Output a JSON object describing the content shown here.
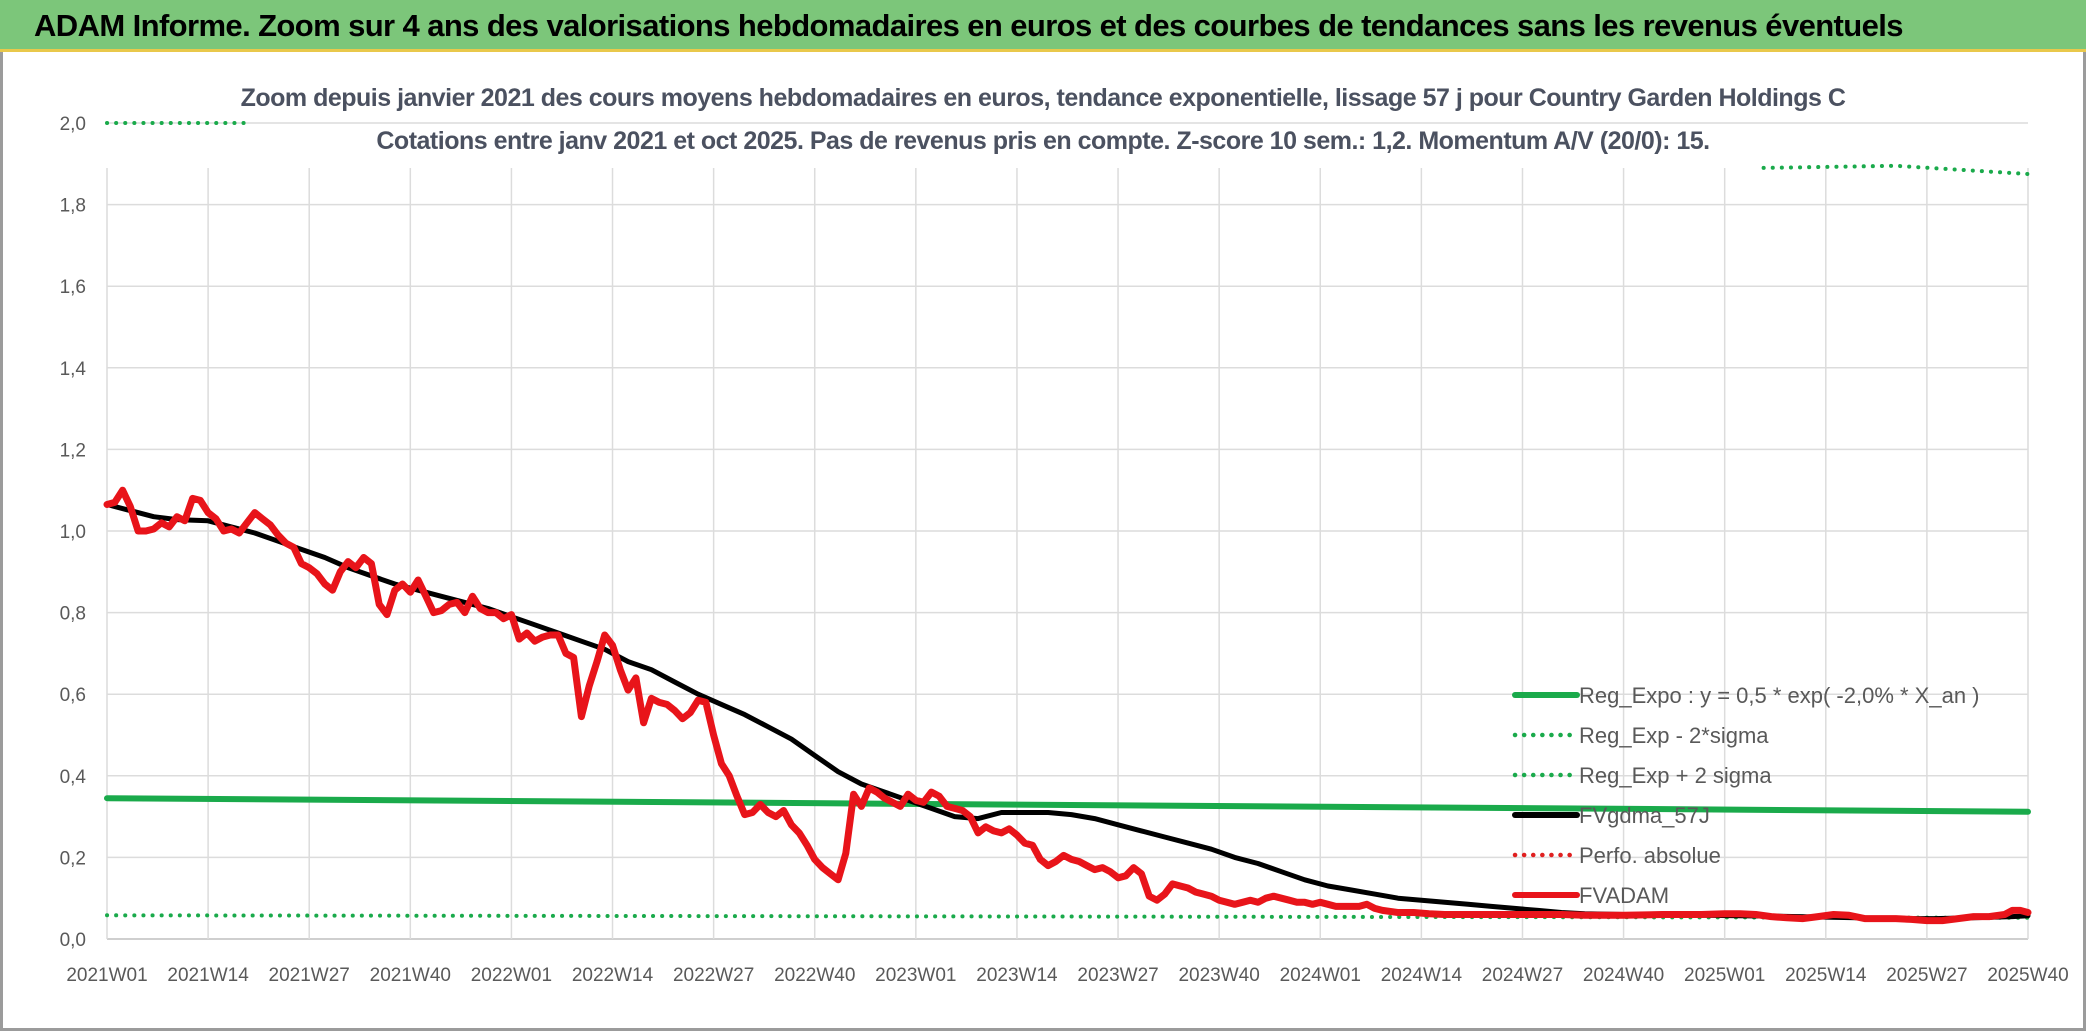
{
  "header": {
    "title": "ADAM Informe. Zoom sur 4 ans des valorisations hebdomadaires en euros et des courbes de tendances sans les revenus éventuels"
  },
  "chart_data": {
    "type": "line",
    "title": "Zoom depuis janvier 2021 des cours moyens hebdomadaires en euros, tendance exponentielle, lissage 57 j pour Country Garden Holdings C",
    "subtitle": "Cotations entre janv 2021 et oct 2025. Pas de revenus pris en compte. Z-score 10 sem.: 1,2. Momentum A/V (20/0): 15.",
    "xlabel": "",
    "ylabel": "",
    "ylim": [
      0,
      2
    ],
    "y_ticks": [
      "0,0",
      "0,2",
      "0,4",
      "0,6",
      "0,8",
      "1,0",
      "1,2",
      "1,4",
      "1,6",
      "1,8",
      "2,0"
    ],
    "x_ticks": [
      "2021W01",
      "2021W14",
      "2021W27",
      "2021W40",
      "2022W01",
      "2022W14",
      "2022W27",
      "2022W40",
      "2023W01",
      "2023W14",
      "2023W27",
      "2023W40",
      "2024W01",
      "2024W14",
      "2024W27",
      "2024W40",
      "2025W01",
      "2025W14",
      "2025W27",
      "2025W40"
    ],
    "grid": true,
    "legend_position": "bottom-right",
    "series": [
      {
        "name": "Reg_Expo : y = 0,5 * exp( -2,0% *  X_an )",
        "color": "#1aaa4b",
        "style": "solid",
        "points": [
          [
            0,
            0.345
          ],
          [
            247,
            0.312
          ]
        ]
      },
      {
        "name": "Reg_Exp - 2*sigma",
        "color": "#1aaa4b",
        "style": "dotted",
        "points": [
          [
            0,
            0.058
          ],
          [
            247,
            0.052
          ]
        ]
      },
      {
        "name": "Reg_Exp + 2 sigma",
        "color": "#1aaa4b",
        "style": "dotted",
        "points": [
          [
            0,
            2.0
          ],
          [
            18,
            2.0
          ],
          [
            null,
            null
          ],
          [
            213,
            1.89
          ],
          [
            230,
            1.895
          ],
          [
            247,
            1.875
          ]
        ]
      },
      {
        "name": "FVgdma_57J",
        "color": "#000000",
        "style": "solid",
        "points": [
          [
            0,
            1.065
          ],
          [
            3,
            1.05
          ],
          [
            6,
            1.035
          ],
          [
            9,
            1.028
          ],
          [
            13,
            1.025
          ],
          [
            16,
            1.01
          ],
          [
            19,
            0.995
          ],
          [
            22,
            0.975
          ],
          [
            25,
            0.955
          ],
          [
            28,
            0.935
          ],
          [
            31,
            0.91
          ],
          [
            34,
            0.89
          ],
          [
            37,
            0.87
          ],
          [
            40,
            0.855
          ],
          [
            43,
            0.84
          ],
          [
            46,
            0.825
          ],
          [
            49,
            0.81
          ],
          [
            52,
            0.79
          ],
          [
            55,
            0.77
          ],
          [
            58,
            0.75
          ],
          [
            61,
            0.73
          ],
          [
            64,
            0.71
          ],
          [
            67,
            0.68
          ],
          [
            70,
            0.66
          ],
          [
            73,
            0.63
          ],
          [
            76,
            0.6
          ],
          [
            79,
            0.575
          ],
          [
            82,
            0.55
          ],
          [
            85,
            0.52
          ],
          [
            88,
            0.49
          ],
          [
            91,
            0.45
          ],
          [
            94,
            0.41
          ],
          [
            97,
            0.38
          ],
          [
            100,
            0.36
          ],
          [
            103,
            0.34
          ],
          [
            106,
            0.32
          ],
          [
            109,
            0.3
          ],
          [
            112,
            0.295
          ],
          [
            115,
            0.31
          ],
          [
            118,
            0.31
          ],
          [
            121,
            0.31
          ],
          [
            124,
            0.305
          ],
          [
            127,
            0.295
          ],
          [
            130,
            0.28
          ],
          [
            133,
            0.265
          ],
          [
            136,
            0.25
          ],
          [
            139,
            0.235
          ],
          [
            142,
            0.22
          ],
          [
            145,
            0.2
          ],
          [
            148,
            0.185
          ],
          [
            151,
            0.165
          ],
          [
            154,
            0.145
          ],
          [
            157,
            0.13
          ],
          [
            160,
            0.12
          ],
          [
            163,
            0.11
          ],
          [
            166,
            0.1
          ],
          [
            169,
            0.095
          ],
          [
            172,
            0.09
          ],
          [
            175,
            0.085
          ],
          [
            178,
            0.08
          ],
          [
            181,
            0.075
          ],
          [
            184,
            0.07
          ],
          [
            187,
            0.065
          ],
          [
            190,
            0.062
          ],
          [
            195,
            0.06
          ],
          [
            200,
            0.058
          ],
          [
            205,
            0.058
          ],
          [
            210,
            0.057
          ],
          [
            215,
            0.056
          ],
          [
            220,
            0.054
          ],
          [
            225,
            0.052
          ],
          [
            230,
            0.05
          ],
          [
            235,
            0.05
          ],
          [
            240,
            0.052
          ],
          [
            245,
            0.055
          ],
          [
            247,
            0.057
          ]
        ]
      },
      {
        "name": "Perfo. absolue",
        "color": "#e02020",
        "style": "dotted",
        "points": []
      },
      {
        "name": "FVADAM",
        "color": "#e8141a",
        "style": "solid",
        "points": [
          [
            0,
            1.065
          ],
          [
            1,
            1.07
          ],
          [
            2,
            1.1
          ],
          [
            3,
            1.06
          ],
          [
            4,
            1.0
          ],
          [
            5,
            1.0
          ],
          [
            6,
            1.005
          ],
          [
            7,
            1.02
          ],
          [
            8,
            1.01
          ],
          [
            9,
            1.035
          ],
          [
            10,
            1.025
          ],
          [
            11,
            1.08
          ],
          [
            12,
            1.075
          ],
          [
            13,
            1.045
          ],
          [
            14,
            1.03
          ],
          [
            15,
            1.0
          ],
          [
            16,
            1.005
          ],
          [
            17,
            0.995
          ],
          [
            18,
            1.02
          ],
          [
            19,
            1.045
          ],
          [
            20,
            1.03
          ],
          [
            21,
            1.015
          ],
          [
            22,
            0.99
          ],
          [
            23,
            0.97
          ],
          [
            24,
            0.96
          ],
          [
            25,
            0.92
          ],
          [
            26,
            0.91
          ],
          [
            27,
            0.895
          ],
          [
            28,
            0.87
          ],
          [
            29,
            0.855
          ],
          [
            30,
            0.9
          ],
          [
            31,
            0.925
          ],
          [
            32,
            0.91
          ],
          [
            33,
            0.935
          ],
          [
            34,
            0.92
          ],
          [
            35,
            0.82
          ],
          [
            36,
            0.795
          ],
          [
            37,
            0.855
          ],
          [
            38,
            0.87
          ],
          [
            39,
            0.85
          ],
          [
            40,
            0.88
          ],
          [
            41,
            0.84
          ],
          [
            42,
            0.8
          ],
          [
            43,
            0.805
          ],
          [
            44,
            0.82
          ],
          [
            45,
            0.825
          ],
          [
            46,
            0.8
          ],
          [
            47,
            0.84
          ],
          [
            48,
            0.81
          ],
          [
            49,
            0.8
          ],
          [
            50,
            0.8
          ],
          [
            51,
            0.785
          ],
          [
            52,
            0.795
          ],
          [
            53,
            0.735
          ],
          [
            54,
            0.75
          ],
          [
            55,
            0.73
          ],
          [
            56,
            0.74
          ],
          [
            57,
            0.745
          ],
          [
            58,
            0.745
          ],
          [
            59,
            0.7
          ],
          [
            60,
            0.69
          ],
          [
            61,
            0.545
          ],
          [
            62,
            0.62
          ],
          [
            63,
            0.68
          ],
          [
            64,
            0.745
          ],
          [
            65,
            0.72
          ],
          [
            66,
            0.66
          ],
          [
            67,
            0.61
          ],
          [
            68,
            0.64
          ],
          [
            69,
            0.53
          ],
          [
            70,
            0.59
          ],
          [
            71,
            0.58
          ],
          [
            72,
            0.575
          ],
          [
            73,
            0.56
          ],
          [
            74,
            0.54
          ],
          [
            75,
            0.555
          ],
          [
            76,
            0.585
          ],
          [
            77,
            0.58
          ],
          [
            78,
            0.5
          ],
          [
            79,
            0.43
          ],
          [
            80,
            0.4
          ],
          [
            81,
            0.35
          ],
          [
            82,
            0.305
          ],
          [
            83,
            0.31
          ],
          [
            84,
            0.33
          ],
          [
            85,
            0.31
          ],
          [
            86,
            0.3
          ],
          [
            87,
            0.315
          ],
          [
            88,
            0.28
          ],
          [
            89,
            0.26
          ],
          [
            90,
            0.23
          ],
          [
            91,
            0.195
          ],
          [
            92,
            0.175
          ],
          [
            93,
            0.16
          ],
          [
            94,
            0.145
          ],
          [
            95,
            0.21
          ],
          [
            96,
            0.355
          ],
          [
            97,
            0.325
          ],
          [
            98,
            0.37
          ],
          [
            99,
            0.36
          ],
          [
            100,
            0.345
          ],
          [
            101,
            0.335
          ],
          [
            102,
            0.325
          ],
          [
            103,
            0.355
          ],
          [
            104,
            0.34
          ],
          [
            105,
            0.335
          ],
          [
            106,
            0.36
          ],
          [
            107,
            0.35
          ],
          [
            108,
            0.325
          ],
          [
            109,
            0.32
          ],
          [
            110,
            0.315
          ],
          [
            111,
            0.3
          ],
          [
            112,
            0.26
          ],
          [
            113,
            0.275
          ],
          [
            114,
            0.265
          ],
          [
            115,
            0.26
          ],
          [
            116,
            0.27
          ],
          [
            117,
            0.255
          ],
          [
            118,
            0.235
          ],
          [
            119,
            0.23
          ],
          [
            120,
            0.195
          ],
          [
            121,
            0.18
          ],
          [
            122,
            0.19
          ],
          [
            123,
            0.205
          ],
          [
            124,
            0.195
          ],
          [
            125,
            0.19
          ],
          [
            126,
            0.18
          ],
          [
            127,
            0.17
          ],
          [
            128,
            0.175
          ],
          [
            129,
            0.165
          ],
          [
            130,
            0.15
          ],
          [
            131,
            0.155
          ],
          [
            132,
            0.175
          ],
          [
            133,
            0.16
          ],
          [
            134,
            0.105
          ],
          [
            135,
            0.095
          ],
          [
            136,
            0.11
          ],
          [
            137,
            0.135
          ],
          [
            138,
            0.13
          ],
          [
            139,
            0.125
          ],
          [
            140,
            0.115
          ],
          [
            141,
            0.11
          ],
          [
            142,
            0.105
          ],
          [
            143,
            0.095
          ],
          [
            144,
            0.09
          ],
          [
            145,
            0.085
          ],
          [
            146,
            0.09
          ],
          [
            147,
            0.095
          ],
          [
            148,
            0.09
          ],
          [
            149,
            0.1
          ],
          [
            150,
            0.105
          ],
          [
            151,
            0.1
          ],
          [
            152,
            0.095
          ],
          [
            153,
            0.09
          ],
          [
            154,
            0.09
          ],
          [
            155,
            0.085
          ],
          [
            156,
            0.09
          ],
          [
            157,
            0.085
          ],
          [
            158,
            0.08
          ],
          [
            159,
            0.08
          ],
          [
            160,
            0.08
          ],
          [
            161,
            0.08
          ],
          [
            162,
            0.085
          ],
          [
            163,
            0.075
          ],
          [
            164,
            0.07
          ],
          [
            166,
            0.065
          ],
          [
            168,
            0.065
          ],
          [
            170,
            0.062
          ],
          [
            172,
            0.06
          ],
          [
            175,
            0.06
          ],
          [
            178,
            0.06
          ],
          [
            181,
            0.06
          ],
          [
            184,
            0.06
          ],
          [
            187,
            0.06
          ],
          [
            190,
            0.058
          ],
          [
            195,
            0.058
          ],
          [
            200,
            0.06
          ],
          [
            205,
            0.06
          ],
          [
            208,
            0.062
          ],
          [
            210,
            0.062
          ],
          [
            212,
            0.06
          ],
          [
            214,
            0.055
          ],
          [
            216,
            0.052
          ],
          [
            218,
            0.05
          ],
          [
            220,
            0.055
          ],
          [
            222,
            0.06
          ],
          [
            224,
            0.058
          ],
          [
            226,
            0.05
          ],
          [
            228,
            0.05
          ],
          [
            230,
            0.05
          ],
          [
            232,
            0.048
          ],
          [
            234,
            0.045
          ],
          [
            236,
            0.045
          ],
          [
            238,
            0.05
          ],
          [
            240,
            0.055
          ],
          [
            242,
            0.055
          ],
          [
            244,
            0.06
          ],
          [
            245,
            0.07
          ],
          [
            246,
            0.07
          ],
          [
            247,
            0.065
          ]
        ]
      }
    ]
  }
}
